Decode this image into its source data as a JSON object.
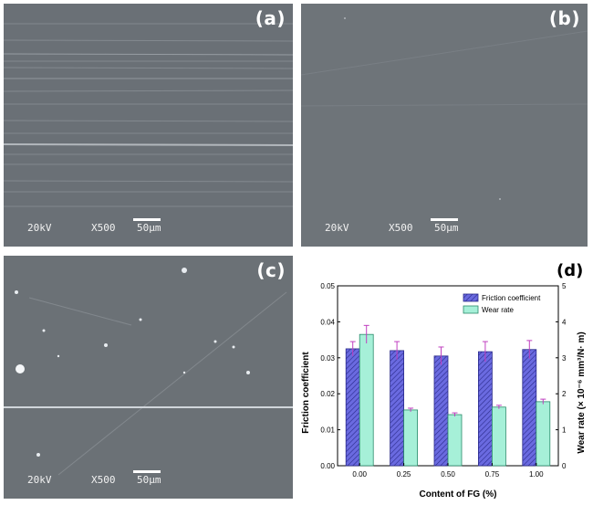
{
  "panels": [
    {
      "letter": "(a)",
      "kv": "20kV",
      "mag": "X500",
      "scale": "50µm"
    },
    {
      "letter": "(b)",
      "kv": "20kV",
      "mag": "X500",
      "scale": "50µm"
    },
    {
      "letter": "(c)",
      "kv": "20kV",
      "mag": "X500",
      "scale": "50µm"
    }
  ],
  "chart_letter": "(d)",
  "chart_data": {
    "type": "bar",
    "categories": [
      "0.00",
      "0.25",
      "0.50",
      "0.75",
      "1.00"
    ],
    "xlabel": "Content of FG (%)",
    "ylabel_left": "Friction coefficient",
    "ylabel_right": "Wear rate (× 10⁻⁶ mm³/N· m)",
    "ylim_left": [
      0,
      0.05
    ],
    "ylim_right": [
      0,
      5
    ],
    "yticks_left": [
      "0.00",
      "0.01",
      "0.02",
      "0.03",
      "0.04",
      "0.05"
    ],
    "yticks_right": [
      "0",
      "1",
      "2",
      "3",
      "4",
      "5"
    ],
    "legend_position": "top-right",
    "series": [
      {
        "name": "Friction coefficient",
        "axis": "left",
        "color": "#5b5bd6",
        "values": [
          0.0325,
          0.032,
          0.0305,
          0.0317,
          0.0323
        ],
        "errors": [
          0.002,
          0.0025,
          0.0025,
          0.0028,
          0.0025
        ]
      },
      {
        "name": "Wear rate",
        "axis": "right",
        "color": "#a6f0d8",
        "values": [
          3.65,
          1.55,
          1.42,
          1.63,
          1.78
        ],
        "errors": [
          0.25,
          0.05,
          0.05,
          0.05,
          0.07
        ]
      }
    ]
  }
}
